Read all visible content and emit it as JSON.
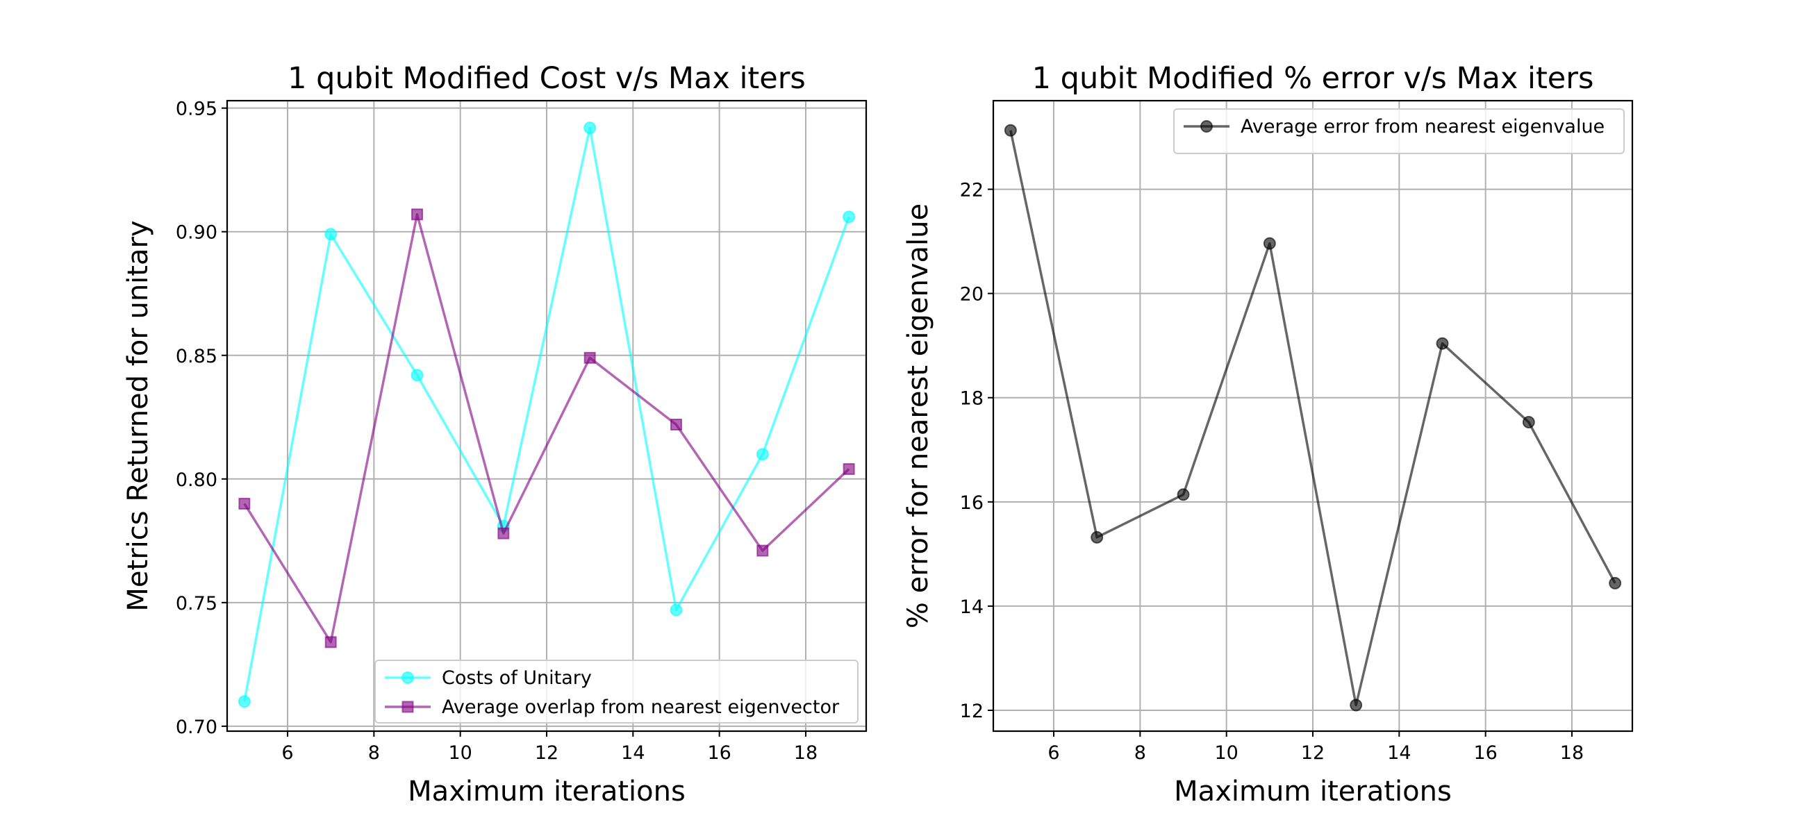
{
  "chart_data": [
    {
      "type": "line",
      "title": "1 qubit Modified Cost v/s Max iters",
      "xlabel": "Maximum iterations",
      "ylabel": "Metrics Returned for unitary",
      "xlim": [
        4.6,
        19.4
      ],
      "ylim": [
        0.698,
        0.953
      ],
      "xticks": [
        6,
        8,
        10,
        12,
        14,
        16,
        18
      ],
      "xtick_labels": [
        "6",
        "8",
        "10",
        "12",
        "14",
        "16",
        "18"
      ],
      "yticks": [
        0.7,
        0.75,
        0.8,
        0.85,
        0.9,
        0.95
      ],
      "ytick_labels": [
        "0.70",
        "0.75",
        "0.80",
        "0.85",
        "0.90",
        "0.95"
      ],
      "grid": true,
      "legend_position": "lower right",
      "x": [
        5,
        7,
        9,
        11,
        13,
        15,
        17,
        19
      ],
      "series": [
        {
          "name": "Costs of Unitary",
          "marker": "circle",
          "color": "#00ffff",
          "values": [
            0.71,
            0.899,
            0.842,
            0.781,
            0.942,
            0.747,
            0.81,
            0.906
          ]
        },
        {
          "name": "Average overlap from nearest eigenvector",
          "marker": "square",
          "color": "#800080",
          "values": [
            0.79,
            0.734,
            0.907,
            0.778,
            0.849,
            0.822,
            0.771,
            0.804
          ]
        }
      ]
    },
    {
      "type": "line",
      "title": "1 qubit Modified % error v/s Max iters",
      "xlabel": "Maximum iterations",
      "ylabel": "% error for nearest eigenvalue",
      "xlim": [
        4.6,
        19.4
      ],
      "ylim": [
        11.6,
        23.7
      ],
      "xticks": [
        6,
        8,
        10,
        12,
        14,
        16,
        18
      ],
      "xtick_labels": [
        "6",
        "8",
        "10",
        "12",
        "14",
        "16",
        "18"
      ],
      "yticks": [
        12,
        14,
        16,
        18,
        20,
        22
      ],
      "ytick_labels": [
        "12",
        "14",
        "16",
        "18",
        "20",
        "22"
      ],
      "grid": true,
      "legend_position": "upper right",
      "x": [
        5,
        7,
        9,
        11,
        13,
        15,
        17,
        19
      ],
      "series": [
        {
          "name": "Average error from nearest eigenvalue",
          "marker": "circle",
          "color": "#000000",
          "values": [
            23.13,
            15.32,
            16.14,
            20.96,
            12.1,
            19.04,
            17.53,
            14.44
          ]
        }
      ]
    }
  ]
}
